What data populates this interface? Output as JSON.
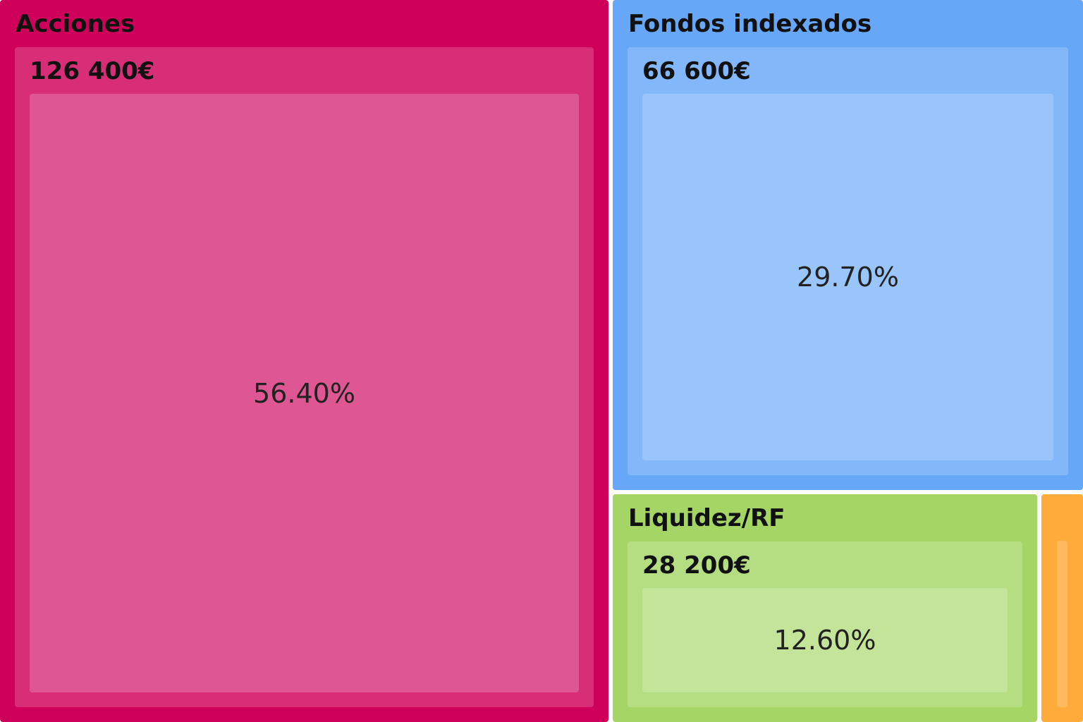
{
  "chart_data": {
    "type": "treemap",
    "items": [
      {
        "category": "Acciones",
        "value_label": "126 400€",
        "value": 126400,
        "percent_label": "56.40%",
        "percent": 56.4,
        "color": "#cf005a"
      },
      {
        "category": "Fondos indexados",
        "value_label": "66 600€",
        "value": 66600,
        "percent_label": "29.70%",
        "percent": 29.7,
        "color": "#66a7f8"
      },
      {
        "category": "Liquidez/RF",
        "value_label": "28 200€",
        "value": 28200,
        "percent_label": "12.60%",
        "percent": 12.6,
        "color": "#a5d665"
      },
      {
        "category": "",
        "value_label": "",
        "value": null,
        "percent_label": "",
        "percent": 1.3,
        "color": "#ffab3c"
      }
    ]
  }
}
